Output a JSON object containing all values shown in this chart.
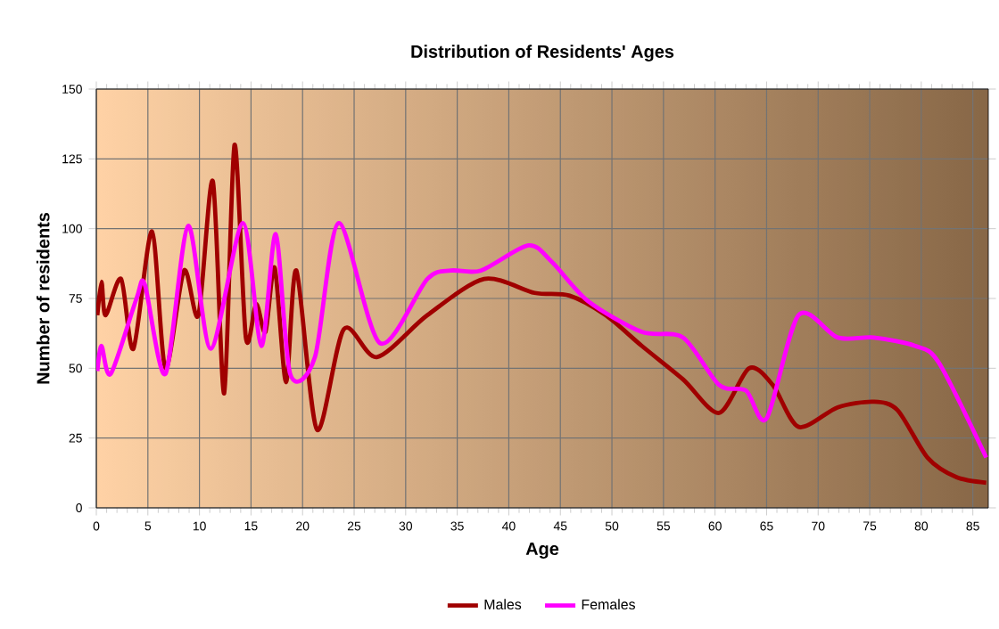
{
  "chart_data": {
    "type": "line",
    "title": "Distribution of Residents' Ages",
    "xlabel": "Age",
    "ylabel": "Number of residents",
    "xlim": [
      0,
      86.5
    ],
    "xticks": [
      0,
      5,
      10,
      15,
      20,
      25,
      30,
      35,
      40,
      45,
      50,
      55,
      60,
      65,
      70,
      75,
      80,
      85
    ],
    "ylim": [
      0,
      150
    ],
    "yticks": [
      0,
      25,
      50,
      75,
      100,
      125,
      150
    ],
    "grid": true,
    "legend": "bottom",
    "marker": "none",
    "line_style": "solid",
    "series": [
      {
        "name": "Males",
        "color": "#a00000",
        "x": [
          0.1,
          0.5,
          0.9,
          2.4,
          3.6,
          5.4,
          6.7,
          8.5,
          9.9,
          11.3,
          12.4,
          13.4,
          14.5,
          15.5,
          16.4,
          17.3,
          18.4,
          19.4,
          21.4,
          24,
          27.2,
          32.1,
          37.6,
          42.5,
          45.9,
          49.4,
          52.9,
          56.9,
          60.4,
          63.3,
          65.6,
          68.1,
          71.9,
          75.4,
          77.7,
          80.6,
          83.4,
          86.3
        ],
        "values": [
          69,
          81,
          69,
          82,
          57,
          99,
          50,
          85,
          69,
          117,
          41,
          130,
          61,
          73,
          63,
          86,
          45,
          85,
          28,
          64,
          54,
          69,
          82,
          77,
          76,
          69,
          58,
          46,
          34,
          50,
          44,
          29,
          36,
          38,
          35,
          18,
          11,
          9
        ]
      },
      {
        "name": "Females",
        "color": "#ff00ff",
        "x": [
          0.1,
          0.5,
          1.4,
          3.9,
          4.7,
          6.7,
          8.9,
          11.1,
          14.2,
          16,
          17.4,
          18.8,
          21.2,
          23.5,
          27.5,
          32.1,
          34.4,
          37.3,
          41.9,
          44.2,
          47.7,
          52.9,
          56.9,
          60.4,
          63,
          65,
          68.1,
          71.9,
          75.4,
          79.4,
          81.7,
          86.3
        ],
        "values": [
          49,
          58,
          48,
          75,
          80,
          48,
          101,
          57,
          102,
          58,
          98,
          48,
          54,
          102,
          59,
          82,
          85,
          85,
          94,
          88,
          74,
          63,
          61,
          44,
          42,
          32,
          69,
          61,
          61,
          58,
          52,
          18
        ]
      }
    ]
  }
}
